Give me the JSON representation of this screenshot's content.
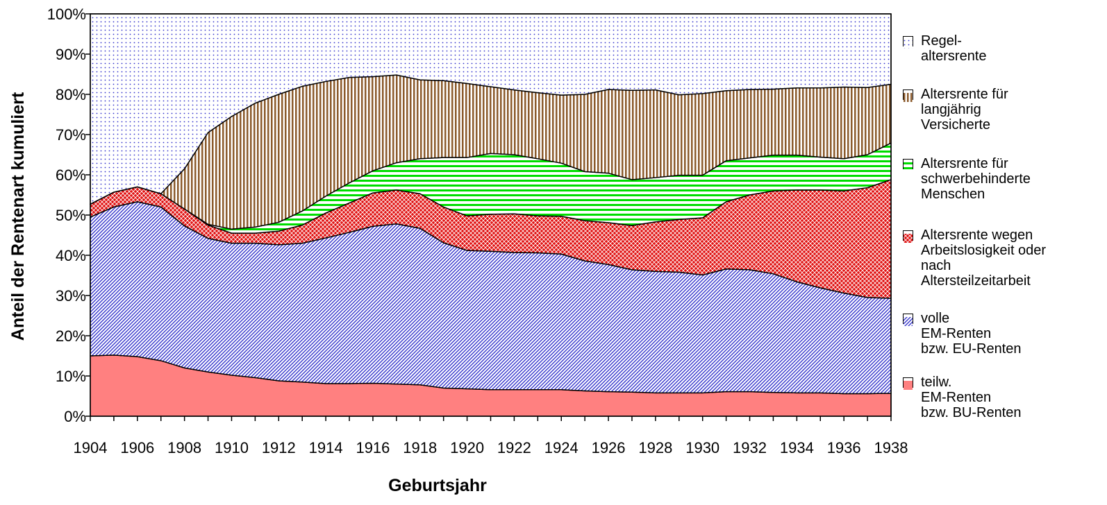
{
  "chart_data": {
    "type": "stacked-area",
    "xlabel": "Geburtsjahr",
    "ylabel": "Anteil der Rentenart kumuliert",
    "x": [
      1904,
      1905,
      1906,
      1907,
      1908,
      1909,
      1910,
      1911,
      1912,
      1913,
      1914,
      1915,
      1916,
      1917,
      1918,
      1919,
      1920,
      1921,
      1922,
      1923,
      1924,
      1925,
      1926,
      1927,
      1928,
      1929,
      1930,
      1931,
      1932,
      1933,
      1934,
      1935,
      1936,
      1937,
      1938
    ],
    "xlim": [
      1904,
      1938
    ],
    "xticks": [
      1904,
      1906,
      1908,
      1910,
      1912,
      1914,
      1916,
      1918,
      1920,
      1922,
      1924,
      1926,
      1928,
      1930,
      1932,
      1934,
      1936,
      1938
    ],
    "ylim": [
      0,
      100
    ],
    "yticks": [
      {
        "value": 0,
        "label": "0%"
      },
      {
        "value": 10,
        "label": "10%"
      },
      {
        "value": 20,
        "label": "20%"
      },
      {
        "value": 30,
        "label": "30%"
      },
      {
        "value": 40,
        "label": "40%"
      },
      {
        "value": 50,
        "label": "50%"
      },
      {
        "value": 60,
        "label": "60%"
      },
      {
        "value": 70,
        "label": "70%"
      },
      {
        "value": 80,
        "label": "80%"
      },
      {
        "value": 90,
        "label": "90%"
      },
      {
        "value": 100,
        "label": "100%"
      }
    ],
    "series": [
      {
        "name": "teilw.\nEM-Renten\nbzw. BU-Renten",
        "color": "#ff8080",
        "pattern": "solid",
        "values": [
          15,
          15.2,
          14.8,
          13.8,
          12,
          11,
          10.2,
          9.6,
          8.8,
          8.5,
          8.1,
          8.1,
          8.2,
          8,
          7.8,
          7,
          6.8,
          6.6,
          6.6,
          6.6,
          6.6,
          6.3,
          6.1,
          6,
          5.8,
          5.8,
          5.8,
          6.1,
          6.1,
          5.9,
          5.8,
          5.8,
          5.6,
          5.6,
          5.7
        ]
      },
      {
        "name": "volle\nEM-Renten\nbzw. EU-Renten",
        "color": "#3333cc",
        "pattern": "diagonal",
        "values": [
          34.5,
          36.8,
          38.5,
          38.2,
          35.3,
          33.2,
          32.8,
          33.4,
          33.8,
          34.5,
          36.2,
          37.6,
          39,
          39.8,
          38.9,
          36.1,
          34.4,
          34.4,
          34.1,
          34,
          33.7,
          32.3,
          31.6,
          30.4,
          30.2,
          30,
          29.3,
          30.5,
          30.3,
          29.5,
          27.6,
          26.1,
          25,
          23.9,
          23.6
        ]
      },
      {
        "name": "Altersrente wegen\nArbeitslosigkeit oder\nnach\nAltersteilzeitarbeit",
        "color": "#e01010",
        "pattern": "crosshatch",
        "values": [
          3.2,
          3.7,
          3.7,
          3.3,
          4.2,
          3.3,
          2.5,
          2.5,
          3.4,
          4.5,
          6.2,
          7.3,
          8.3,
          8.4,
          8.6,
          8.9,
          8.6,
          9.2,
          9.6,
          9.2,
          9.4,
          10,
          10.4,
          11,
          12.3,
          13.1,
          14.2,
          16.7,
          18.6,
          20.6,
          22.8,
          24.3,
          25.4,
          27.3,
          29.5
        ]
      },
      {
        "name": "Altersrente für\nschwerbehinderte\nMenschen",
        "color": "#00dd00",
        "pattern": "horizontal",
        "values": [
          0,
          0,
          0,
          0,
          0,
          0.2,
          1,
          1.5,
          2.2,
          3.5,
          4.2,
          5,
          5.5,
          6.8,
          8.7,
          12.3,
          14.5,
          15.1,
          14.7,
          14.2,
          13.2,
          12.2,
          12.3,
          11.4,
          11,
          11,
          10.6,
          10.2,
          9.2,
          8.9,
          8.7,
          8.2,
          8,
          8.2,
          9.1
        ]
      },
      {
        "name": "Altersrente für\nlangjährig\nVersicherte",
        "color": "#8b5a2b",
        "pattern": "vertical",
        "values": [
          0,
          0,
          0,
          0,
          10,
          22.8,
          28,
          30.8,
          31.8,
          31,
          28.5,
          26.2,
          23.4,
          21.8,
          19.6,
          19.1,
          18.4,
          16.6,
          16.1,
          16.4,
          16.9,
          19.2,
          20.8,
          22.2,
          21.8,
          20,
          20.3,
          17.4,
          17,
          16.4,
          16.7,
          17.2,
          17.8,
          16.7,
          14.6
        ]
      },
      {
        "name": "Regel-\naltersrente",
        "color": "#3333cc",
        "pattern": "dots",
        "values": [
          47.3,
          44.3,
          43,
          44.7,
          38.5,
          29.5,
          25.5,
          22.2,
          20,
          18,
          16.8,
          15.8,
          15.6,
          15.2,
          16.4,
          16.6,
          17.3,
          18.1,
          18.9,
          19.6,
          20.2,
          20,
          18.8,
          19,
          18.9,
          20.1,
          19.8,
          19.1,
          18.8,
          18.7,
          18.4,
          18.4,
          18.2,
          18.3,
          17.5
        ]
      }
    ]
  }
}
